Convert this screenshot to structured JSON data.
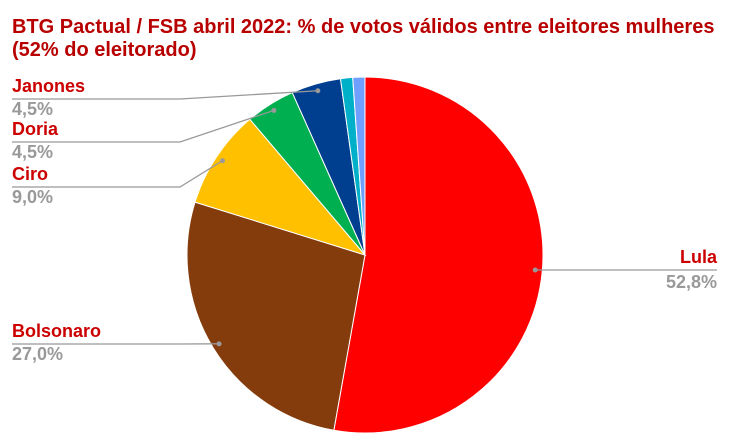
{
  "chart_data": {
    "type": "pie",
    "title": "BTG Pactual / FSB abril 2022: % de votos válidos entre eleitores mulheres (52% do eleitorado)",
    "categories": [
      "Lula",
      "Bolsonaro",
      "Ciro",
      "Doria",
      "Janones",
      null,
      null
    ],
    "values": [
      52.8,
      27.0,
      9.0,
      4.5,
      4.5,
      1.1,
      1.1
    ],
    "value_labels": [
      "52,8%",
      "27,0%",
      "9,0%",
      "4,5%",
      "4,5%",
      null,
      null
    ],
    "colors": [
      "#ff0000",
      "#843c0c",
      "#ffc000",
      "#00b050",
      "#003f8f",
      "#00b0c8",
      "#6fa0ff"
    ]
  }
}
